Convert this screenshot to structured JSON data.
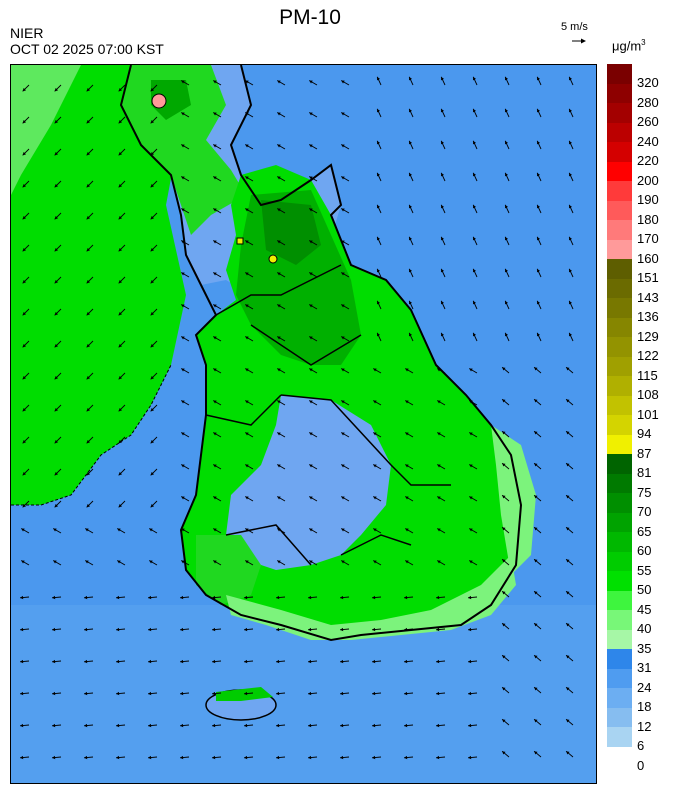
{
  "header": {
    "title": "PM-10",
    "organization": "NIER",
    "timestamp": "OCT 02 2025 07:00 KST",
    "vector_scale_label": "5 m/s",
    "unit_base": "μg/m",
    "unit_sup": "3"
  },
  "legend": {
    "entries": [
      {
        "label": "320",
        "color": "#7a0000"
      },
      {
        "label": "280",
        "color": "#8e0000"
      },
      {
        "label": "260",
        "color": "#a30000"
      },
      {
        "label": "240",
        "color": "#bb0000"
      },
      {
        "label": "220",
        "color": "#d40000"
      },
      {
        "label": "200",
        "color": "#ff0000"
      },
      {
        "label": "190",
        "color": "#ff3a3a"
      },
      {
        "label": "180",
        "color": "#ff5a5a"
      },
      {
        "label": "170",
        "color": "#ff7a7a"
      },
      {
        "label": "160",
        "color": "#ff9a9a"
      },
      {
        "label": "151",
        "color": "#5e5e00"
      },
      {
        "label": "143",
        "color": "#6b6b00"
      },
      {
        "label": "136",
        "color": "#787800"
      },
      {
        "label": "129",
        "color": "#868600"
      },
      {
        "label": "122",
        "color": "#939300"
      },
      {
        "label": "115",
        "color": "#a0a000"
      },
      {
        "label": "108",
        "color": "#b0b000"
      },
      {
        "label": "101",
        "color": "#c2c200"
      },
      {
        "label": "94",
        "color": "#d4d400"
      },
      {
        "label": "87",
        "color": "#f0f000"
      },
      {
        "label": "81",
        "color": "#006400"
      },
      {
        "label": "75",
        "color": "#007a00"
      },
      {
        "label": "70",
        "color": "#008f00"
      },
      {
        "label": "65",
        "color": "#00a300"
      },
      {
        "label": "60",
        "color": "#00b800"
      },
      {
        "label": "55",
        "color": "#00cc00"
      },
      {
        "label": "50",
        "color": "#00e000"
      },
      {
        "label": "45",
        "color": "#3ef53e"
      },
      {
        "label": "40",
        "color": "#78f778"
      },
      {
        "label": "35",
        "color": "#a6f7a6"
      },
      {
        "label": "31",
        "color": "#2e86ea"
      },
      {
        "label": "24",
        "color": "#4f9cf0"
      },
      {
        "label": "18",
        "color": "#6caef2"
      },
      {
        "label": "12",
        "color": "#86bdf0"
      },
      {
        "label": "6",
        "color": "#a9d4f2"
      },
      {
        "label": "0",
        "color": ""
      }
    ]
  },
  "map_colors": {
    "sea": "#4b98ee",
    "land_low": "#6fa6f1",
    "green": "#00dd00",
    "green_dark": "#00a800",
    "green_light": "#7cf37c",
    "outline": "#000000"
  }
}
